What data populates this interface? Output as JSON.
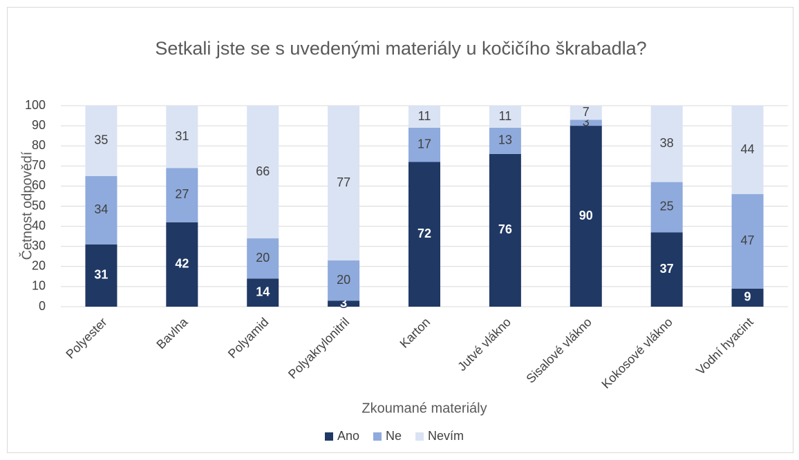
{
  "chart_data": {
    "type": "stacked_bar",
    "title": "Setkali jste se s uvedenými materiály u kočičího škrabadla?",
    "x_label": "Zkoumané materiály",
    "y_label": "Četnost odpovědí",
    "categories": [
      "Polyester",
      "Bavlna",
      "Polyamid",
      "Polyakrylonitril",
      "Karton",
      "Jutvé vlákno",
      "Sisalové vlákno",
      "Kokosové vlákno",
      "Vodní hyacint"
    ],
    "series": [
      {
        "name": "Ano",
        "color": "#203864",
        "values": [
          31,
          42,
          14,
          3,
          72,
          76,
          90,
          37,
          9
        ]
      },
      {
        "name": "Ne",
        "color": "#8faadc",
        "values": [
          34,
          27,
          20,
          20,
          17,
          13,
          3,
          25,
          47
        ]
      },
      {
        "name": "Nevím",
        "color": "#dae3f3",
        "values": [
          35,
          31,
          66,
          77,
          11,
          11,
          7,
          38,
          44
        ]
      }
    ],
    "ylim": [
      0,
      100
    ],
    "yticks": [
      0,
      10,
      20,
      30,
      40,
      50,
      60,
      70,
      80,
      90,
      100
    ],
    "grid": true,
    "legend": "bottom"
  }
}
